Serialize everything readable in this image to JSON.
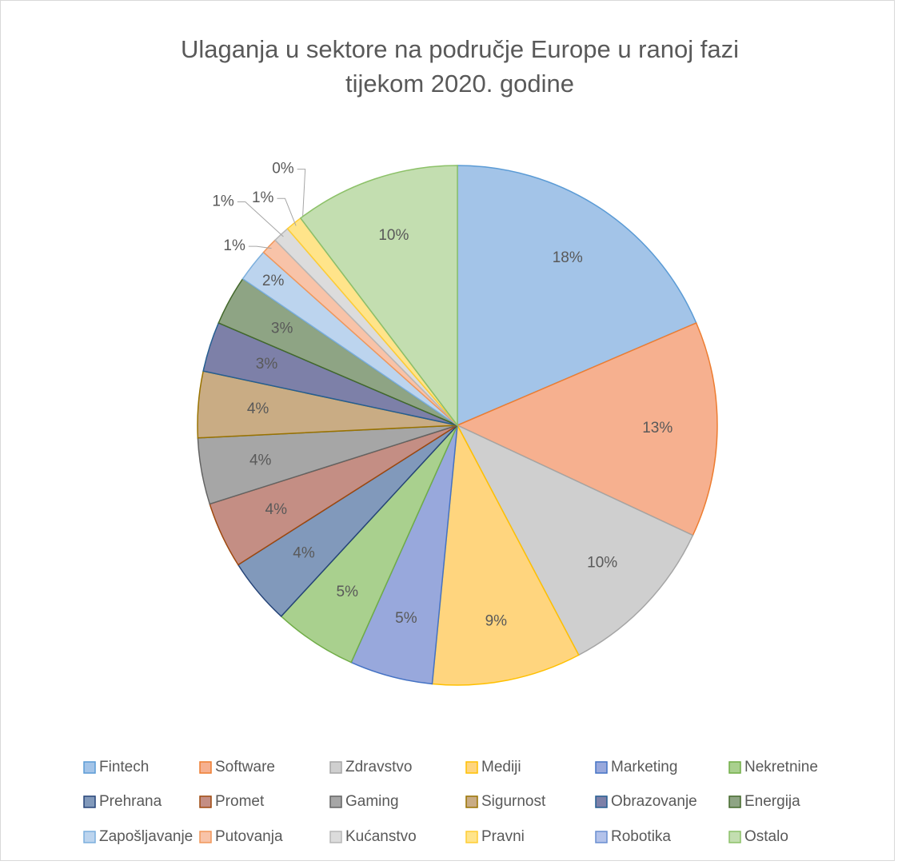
{
  "chart_data": {
    "type": "pie",
    "title": [
      "Ulaganja u sektore na područje Europe u ranoj fazi",
      "tijekom 2020. godine"
    ],
    "categories": [
      "Fintech",
      "Software",
      "Zdravstvo",
      "Mediji",
      "Marketing",
      "Nekretnine",
      "Prehrana",
      "Promet",
      "Gaming",
      "Sigurnost",
      "Obrazovanje",
      "Energija",
      "Zapošljavanje",
      "Putovanja",
      "Kućanstvo",
      "Pravni",
      "Robotika",
      "Ostalo"
    ],
    "values": [
      18,
      13,
      10,
      9,
      5,
      5,
      4,
      4,
      4,
      4,
      3,
      3,
      2,
      1,
      1,
      1,
      0,
      10
    ],
    "value_labels": [
      "18%",
      "13%",
      "10%",
      "9%",
      "5%",
      "5%",
      "4%",
      "4%",
      "4%",
      "4%",
      "3%",
      "3%",
      "2%",
      "1%",
      "1%",
      "1%",
      "0%",
      "10%"
    ],
    "colors": [
      "#a3c4e8",
      "#f6b08f",
      "#cfcfcf",
      "#ffd57e",
      "#98a8dc",
      "#a9d08e",
      "#8199bb",
      "#c48e84",
      "#a6a6a6",
      "#c9ac84",
      "#7d80a8",
      "#8ea484",
      "#bcd4ee",
      "#f8c3a8",
      "#dcdcdc",
      "#ffe48a",
      "#b3c2ea",
      "#c3deb0"
    ],
    "edge_colors": [
      "#5b9bd5",
      "#ed7d31",
      "#a5a5a5",
      "#ffc000",
      "#4472c4",
      "#70ad47",
      "#264478",
      "#9e480e",
      "#636363",
      "#997300",
      "#255e91",
      "#43682b",
      "#7cafdd",
      "#f1975a",
      "#b7b7b7",
      "#ffcd33",
      "#698ed0",
      "#8cc168"
    ],
    "legend": "bottom"
  }
}
